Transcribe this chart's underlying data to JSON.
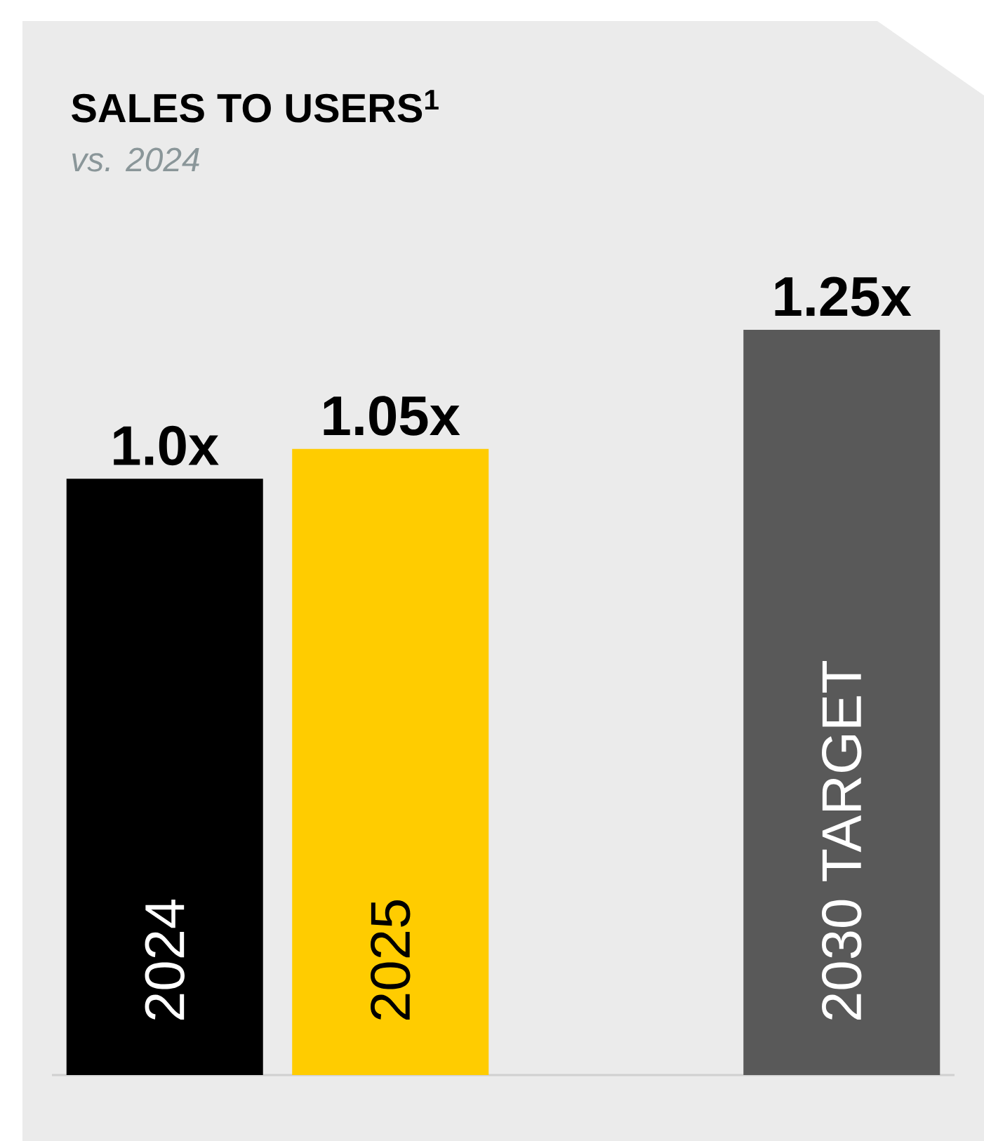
{
  "chart_data": {
    "type": "bar",
    "title": "SALES TO USERS$^{1}$",
    "subtitle": "vs. 2024",
    "categories": [
      "2024",
      "2025",
      null,
      "2030 TARGET"
    ],
    "values": [
      1.0,
      1.05,
      null,
      1.25
    ],
    "colors": [
      "#000000",
      "#ffcc00",
      null,
      "#595959"
    ],
    "value_labels": [
      "1.0x",
      "1.05x",
      null,
      "1.25x"
    ],
    "data_labels": false
  }
}
